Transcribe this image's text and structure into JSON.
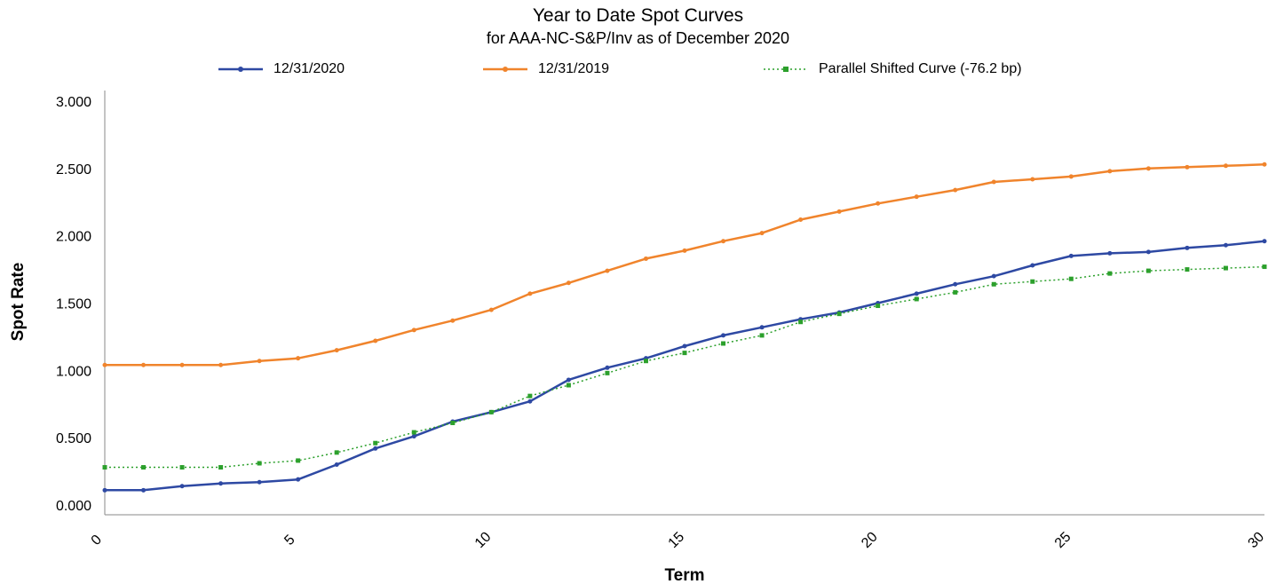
{
  "chart_data": {
    "type": "line",
    "title": "Year to Date Spot Curves",
    "subtitle": "for AAA-NC-S&P/Inv as of December 2020",
    "xlabel": "Term",
    "ylabel": "Spot Rate",
    "xlim": [
      0,
      30
    ],
    "ylim": [
      0,
      3
    ],
    "xticks": [
      "0",
      "5",
      "10",
      "15",
      "20",
      "25",
      "30"
    ],
    "yticks": [
      "0.000",
      "0.500",
      "1.000",
      "1.500",
      "2.000",
      "2.500",
      "3.000"
    ],
    "legend_position": "top",
    "grid": false,
    "x": [
      0,
      1,
      2,
      3,
      4,
      5,
      6,
      7,
      8,
      9,
      10,
      11,
      12,
      13,
      14,
      15,
      16,
      17,
      18,
      19,
      20,
      21,
      22,
      23,
      24,
      25,
      26,
      27,
      28,
      29,
      30
    ],
    "series": [
      {
        "name": "12/31/2020",
        "color": "#2e49a3",
        "style": "solid",
        "values": [
          0.11,
          0.11,
          0.14,
          0.16,
          0.17,
          0.19,
          0.3,
          0.42,
          0.51,
          0.62,
          0.69,
          0.77,
          0.93,
          1.02,
          1.09,
          1.18,
          1.26,
          1.32,
          1.38,
          1.43,
          1.5,
          1.57,
          1.64,
          1.7,
          1.78,
          1.85,
          1.87,
          1.88,
          1.91,
          1.93,
          1.96
        ]
      },
      {
        "name": "12/31/2019",
        "color": "#f0842c",
        "style": "solid",
        "values": [
          1.04,
          1.04,
          1.04,
          1.04,
          1.07,
          1.09,
          1.15,
          1.22,
          1.3,
          1.37,
          1.45,
          1.57,
          1.65,
          1.74,
          1.83,
          1.89,
          1.96,
          2.02,
          2.12,
          2.18,
          2.24,
          2.29,
          2.34,
          2.4,
          2.42,
          2.44,
          2.48,
          2.5,
          2.51,
          2.52,
          2.53
        ]
      },
      {
        "name": "Parallel Shifted Curve (-76.2 bp)",
        "color": "#2ca02c",
        "style": "dotted",
        "values": [
          0.28,
          0.28,
          0.28,
          0.28,
          0.31,
          0.33,
          0.39,
          0.46,
          0.54,
          0.61,
          0.69,
          0.81,
          0.89,
          0.98,
          1.07,
          1.13,
          1.2,
          1.26,
          1.36,
          1.42,
          1.48,
          1.53,
          1.58,
          1.64,
          1.66,
          1.68,
          1.72,
          1.74,
          1.75,
          1.76,
          1.77
        ]
      }
    ]
  }
}
